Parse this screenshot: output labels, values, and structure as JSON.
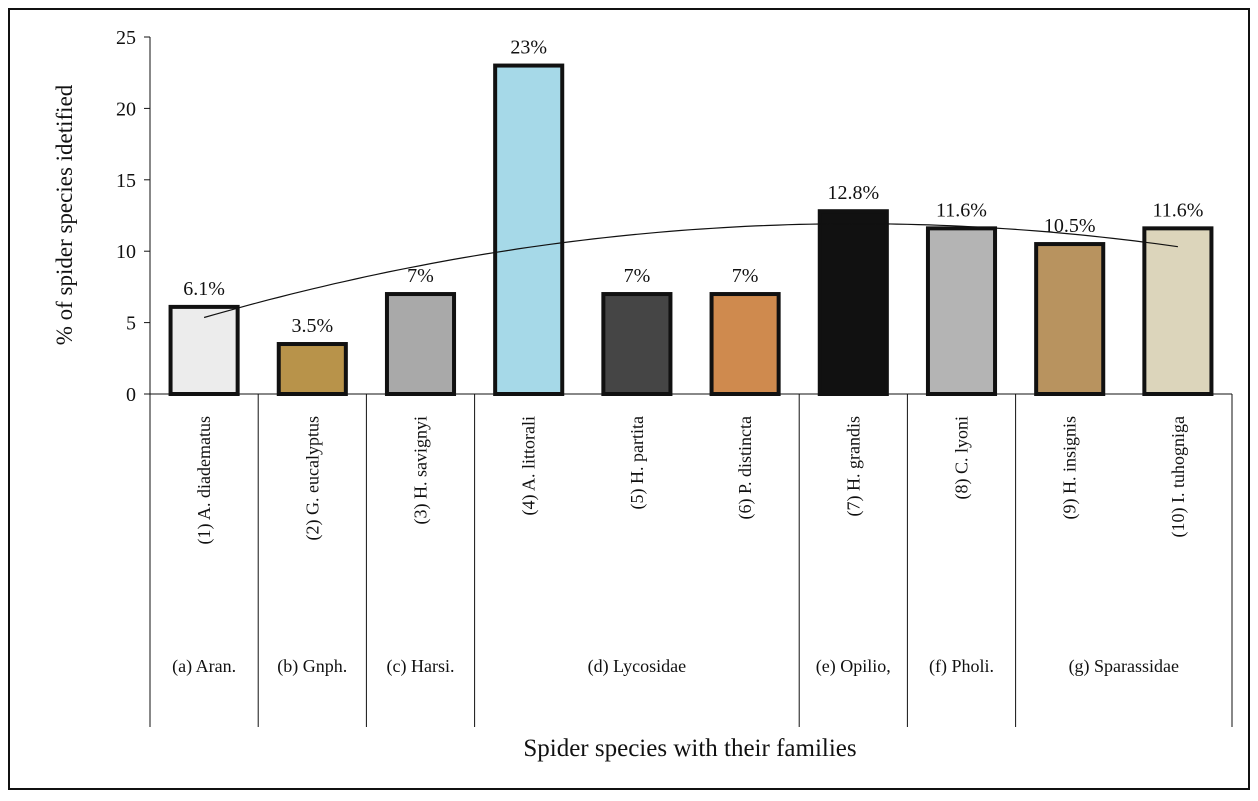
{
  "chart_data": {
    "type": "bar",
    "ylabel": "% of spider species idetified",
    "xlabel": "Spider species with their families",
    "categories": [
      "(1) A. diadematus",
      "(2) G. eucalyptus",
      "(3) H. savignyi",
      "(4) A. littorali",
      "(5) H. partita",
      "(6) P. distincta",
      "(7) H. grandis",
      "(8) C. lyoni",
      "(9) H. insignis",
      "(10) I. tuhogniga"
    ],
    "values": [
      6.1,
      3.5,
      7,
      23,
      7,
      7,
      12.8,
      11.6,
      10.5,
      11.6
    ],
    "value_labels": [
      "6.1%",
      "3.5%",
      "7%",
      "23%",
      "7%",
      "7%",
      "12.8%",
      "11.6%",
      "10.5%",
      "11.6%"
    ],
    "colors": [
      "#ececec",
      "#b8934a",
      "#a9a9a9",
      "#a6d9e8",
      "#454545",
      "#cf8a4e",
      "#111111",
      "#b4b4b4",
      "#b8935f",
      "#dcd5bb"
    ],
    "families": [
      {
        "name": "(a) Aran.",
        "span": 1
      },
      {
        "name": "(b) Gnph.",
        "span": 1
      },
      {
        "name": "(c) Harsi.",
        "span": 1
      },
      {
        "name": "(d) Lycosidae",
        "span": 3
      },
      {
        "name": "(e) Opilio,",
        "span": 1
      },
      {
        "name": "(f) Pholi.",
        "span": 1
      },
      {
        "name": "(g) Sparassidae",
        "span": 2
      }
    ],
    "ylim": [
      0,
      25
    ],
    "yticks": [
      0,
      5,
      10,
      15,
      20,
      25
    ],
    "trendline": "polynomial-2"
  }
}
